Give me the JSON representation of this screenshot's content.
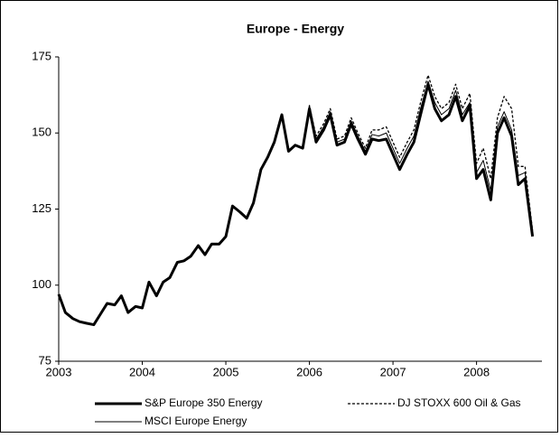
{
  "chart_data": {
    "type": "line",
    "title": "Europe - Energy",
    "x": [
      2003,
      2003.08,
      2003.17,
      2003.25,
      2003.33,
      2003.42,
      2003.5,
      2003.58,
      2003.67,
      2003.75,
      2003.83,
      2003.92,
      2004,
      2004.08,
      2004.17,
      2004.25,
      2004.33,
      2004.42,
      2004.5,
      2004.58,
      2004.67,
      2004.75,
      2004.83,
      2004.92,
      2005,
      2005.08,
      2005.17,
      2005.25,
      2005.33,
      2005.42,
      2005.5,
      2005.58,
      2005.67,
      2005.75,
      2005.83,
      2005.92,
      2006,
      2006.08,
      2006.17,
      2006.25,
      2006.33,
      2006.42,
      2006.5,
      2006.58,
      2006.67,
      2006.75,
      2006.83,
      2006.92,
      2007,
      2007.08,
      2007.17,
      2007.25,
      2007.33,
      2007.42,
      2007.5,
      2007.58,
      2007.67,
      2007.75,
      2007.83,
      2007.92,
      2008,
      2008.08,
      2008.17,
      2008.25,
      2008.33,
      2008.42,
      2008.5,
      2008.58,
      2008.67
    ],
    "series": [
      {
        "name": "S&P Europe 350 Energy",
        "color": "#000000",
        "line_width": 3,
        "dashed": false,
        "values": [
          97,
          91,
          89,
          88,
          87.5,
          87,
          90.5,
          94,
          93.5,
          96.5,
          91,
          93,
          92.5,
          101,
          96.5,
          101,
          102.5,
          107.5,
          108,
          109.5,
          113,
          110,
          113.5,
          113.5,
          116,
          126,
          124,
          122,
          127,
          138,
          142,
          147,
          156,
          144,
          146,
          145,
          158,
          147,
          151,
          156,
          146,
          147,
          153,
          148,
          143,
          148,
          147.5,
          148,
          143,
          138,
          143,
          147,
          156,
          166,
          158,
          154,
          156,
          162,
          154,
          159,
          135,
          138,
          128,
          150,
          155,
          149,
          133,
          135,
          116
        ]
      },
      {
        "name": "DJ STOXX 600 Oil & Gas",
        "color": "#000000",
        "line_width": 1.3,
        "dashed": true,
        "values": [
          97,
          91,
          89,
          88,
          87.5,
          87,
          90.5,
          94,
          93.5,
          96.5,
          91,
          93,
          92.5,
          101,
          96.5,
          101,
          102.5,
          107.5,
          108,
          109.5,
          113,
          110,
          113.5,
          113.5,
          116,
          126,
          124,
          122,
          127,
          138,
          142,
          147,
          156,
          144,
          146,
          145,
          159,
          149,
          153,
          158,
          148,
          149,
          155,
          150,
          145,
          151,
          151,
          152,
          147,
          142,
          147,
          151,
          160,
          169,
          162,
          158,
          160,
          166,
          158,
          163,
          140,
          145,
          135,
          155,
          162,
          158,
          139,
          139,
          118
        ]
      },
      {
        "name": "MSCI Europe Energy",
        "color": "#000000",
        "line_width": 1,
        "dashed": false,
        "values": [
          97,
          91,
          89,
          88,
          87.5,
          87,
          90.5,
          94,
          93.5,
          96.5,
          91,
          93,
          92.5,
          101,
          96.5,
          101,
          102.5,
          107.5,
          108,
          109.5,
          113,
          110,
          113.5,
          113.5,
          116,
          126,
          124,
          122,
          127,
          138,
          142,
          147,
          156,
          144,
          146,
          145,
          159,
          148,
          152,
          157,
          147,
          148,
          154,
          149,
          144,
          149.5,
          149,
          150,
          145,
          140,
          145,
          149,
          158,
          167,
          160,
          156,
          158,
          164,
          156,
          160,
          137,
          141,
          131,
          152,
          157,
          151,
          136,
          137,
          117
        ]
      }
    ],
    "xlim": [
      2003,
      2008.75
    ],
    "xticks": [
      2003,
      2004,
      2005,
      2006,
      2007,
      2008
    ],
    "ylim": [
      75,
      175
    ],
    "yticks": [
      75,
      100,
      125,
      150,
      175
    ],
    "grid": false
  }
}
